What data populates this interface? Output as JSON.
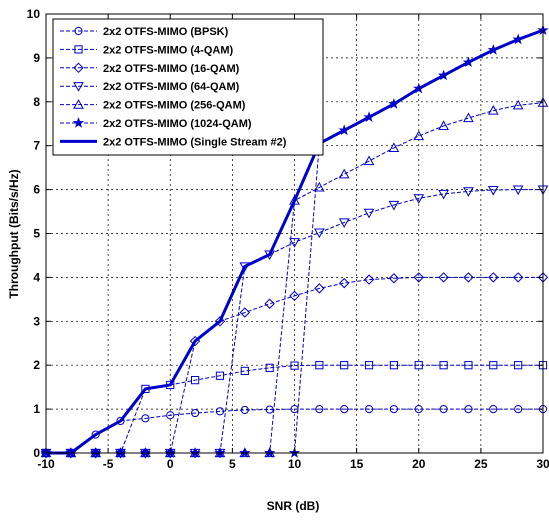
{
  "chart_data": {
    "type": "line",
    "title": "",
    "xlabel": "SNR (dB)",
    "ylabel": "Throughput (Bits/s/Hz)",
    "xlim": [
      -10,
      30
    ],
    "ylim": [
      0,
      10
    ],
    "xticks": [
      -10,
      -5,
      0,
      5,
      10,
      15,
      20,
      25,
      30
    ],
    "yticks": [
      0,
      1,
      2,
      3,
      4,
      5,
      6,
      7,
      8,
      9,
      10
    ],
    "grid": true,
    "legend_position": "top-left",
    "line_color": "#0000cc",
    "series": [
      {
        "name": "2x2 OTFS-MIMO (BPSK)",
        "marker": "circle",
        "line_style": "dashed",
        "x": [
          -10,
          -8,
          -6,
          -4,
          -2,
          0,
          2,
          4,
          6,
          8,
          10,
          12,
          14,
          16,
          18,
          20,
          22,
          24,
          26,
          28,
          30
        ],
        "y": [
          0,
          0,
          0.42,
          0.73,
          0.79,
          0.86,
          0.91,
          0.95,
          0.98,
          0.99,
          1.0,
          1.0,
          1.0,
          1.0,
          1.0,
          1.0,
          1.0,
          1.0,
          1.0,
          1.0,
          1.0
        ]
      },
      {
        "name": "2x2 OTFS-MIMO (4-QAM)",
        "marker": "square",
        "line_style": "dashed",
        "x": [
          -10,
          -8,
          -6,
          -4,
          -2,
          0,
          2,
          4,
          6,
          8,
          10,
          12,
          14,
          16,
          18,
          20,
          22,
          24,
          26,
          28,
          30
        ],
        "y": [
          0,
          0,
          0,
          0,
          1.46,
          1.55,
          1.66,
          1.76,
          1.87,
          1.94,
          1.99,
          2.0,
          2.0,
          2.0,
          2.0,
          2.0,
          2.0,
          2.0,
          2.0,
          2.0,
          2.0
        ]
      },
      {
        "name": "2x2 OTFS-MIMO (16-QAM)",
        "marker": "diamond",
        "line_style": "dashed",
        "x": [
          -10,
          -8,
          -6,
          -4,
          -2,
          0,
          2,
          4,
          6,
          8,
          10,
          12,
          14,
          16,
          18,
          20,
          22,
          24,
          26,
          28,
          30
        ],
        "y": [
          0,
          0,
          0,
          0,
          0,
          0,
          2.55,
          3.0,
          3.2,
          3.4,
          3.58,
          3.75,
          3.87,
          3.95,
          3.98,
          4.0,
          4.0,
          4.0,
          4.0,
          4.0,
          4.0
        ]
      },
      {
        "name": "2x2 OTFS-MIMO (64-QAM)",
        "marker": "triangle-down",
        "line_style": "dashed",
        "x": [
          -10,
          -8,
          -6,
          -4,
          -2,
          0,
          2,
          4,
          6,
          8,
          10,
          12,
          14,
          16,
          18,
          20,
          22,
          24,
          26,
          28,
          30
        ],
        "y": [
          0,
          0,
          0,
          0,
          0,
          0,
          0,
          0,
          4.25,
          4.52,
          4.8,
          5.02,
          5.25,
          5.47,
          5.65,
          5.8,
          5.9,
          5.96,
          5.99,
          6.0,
          6.0
        ]
      },
      {
        "name": "2x2 OTFS-MIMO (256-QAM)",
        "marker": "triangle-up",
        "line_style": "dashed",
        "x": [
          -10,
          -8,
          -6,
          -4,
          -2,
          0,
          2,
          4,
          6,
          8,
          10,
          12,
          14,
          16,
          18,
          20,
          22,
          24,
          26,
          28,
          30
        ],
        "y": [
          0,
          0,
          0,
          0,
          0,
          0,
          0,
          0,
          0,
          0,
          5.75,
          6.05,
          6.35,
          6.65,
          6.95,
          7.22,
          7.45,
          7.63,
          7.8,
          7.92,
          7.98
        ]
      },
      {
        "name": "2x2 OTFS-MIMO (1024-QAM)",
        "marker": "star",
        "line_style": "dashed",
        "x": [
          -10,
          -8,
          -6,
          -4,
          -2,
          0,
          2,
          4,
          6,
          8,
          10,
          12,
          14,
          16,
          18,
          20,
          22,
          24,
          26,
          28,
          30
        ],
        "y": [
          0,
          0,
          0,
          0,
          0,
          0,
          0,
          0,
          0,
          0,
          0,
          7.05,
          7.35,
          7.65,
          7.95,
          8.3,
          8.6,
          8.9,
          9.18,
          9.42,
          9.63
        ]
      },
      {
        "name": "2x2 OTFS-MIMO (Single Stream #2)",
        "marker": "none",
        "line_style": "solid-thick",
        "x": [
          -10,
          -8,
          -6,
          -4,
          -2,
          0,
          2,
          4,
          6,
          8,
          10,
          12,
          14,
          16,
          18,
          20,
          22,
          24,
          26,
          28,
          30
        ],
        "y": [
          0,
          0,
          0.42,
          0.73,
          1.46,
          1.55,
          2.55,
          3.0,
          4.25,
          4.52,
          5.75,
          7.05,
          7.35,
          7.65,
          7.95,
          8.3,
          8.6,
          8.9,
          9.18,
          9.42,
          9.63
        ]
      }
    ]
  }
}
